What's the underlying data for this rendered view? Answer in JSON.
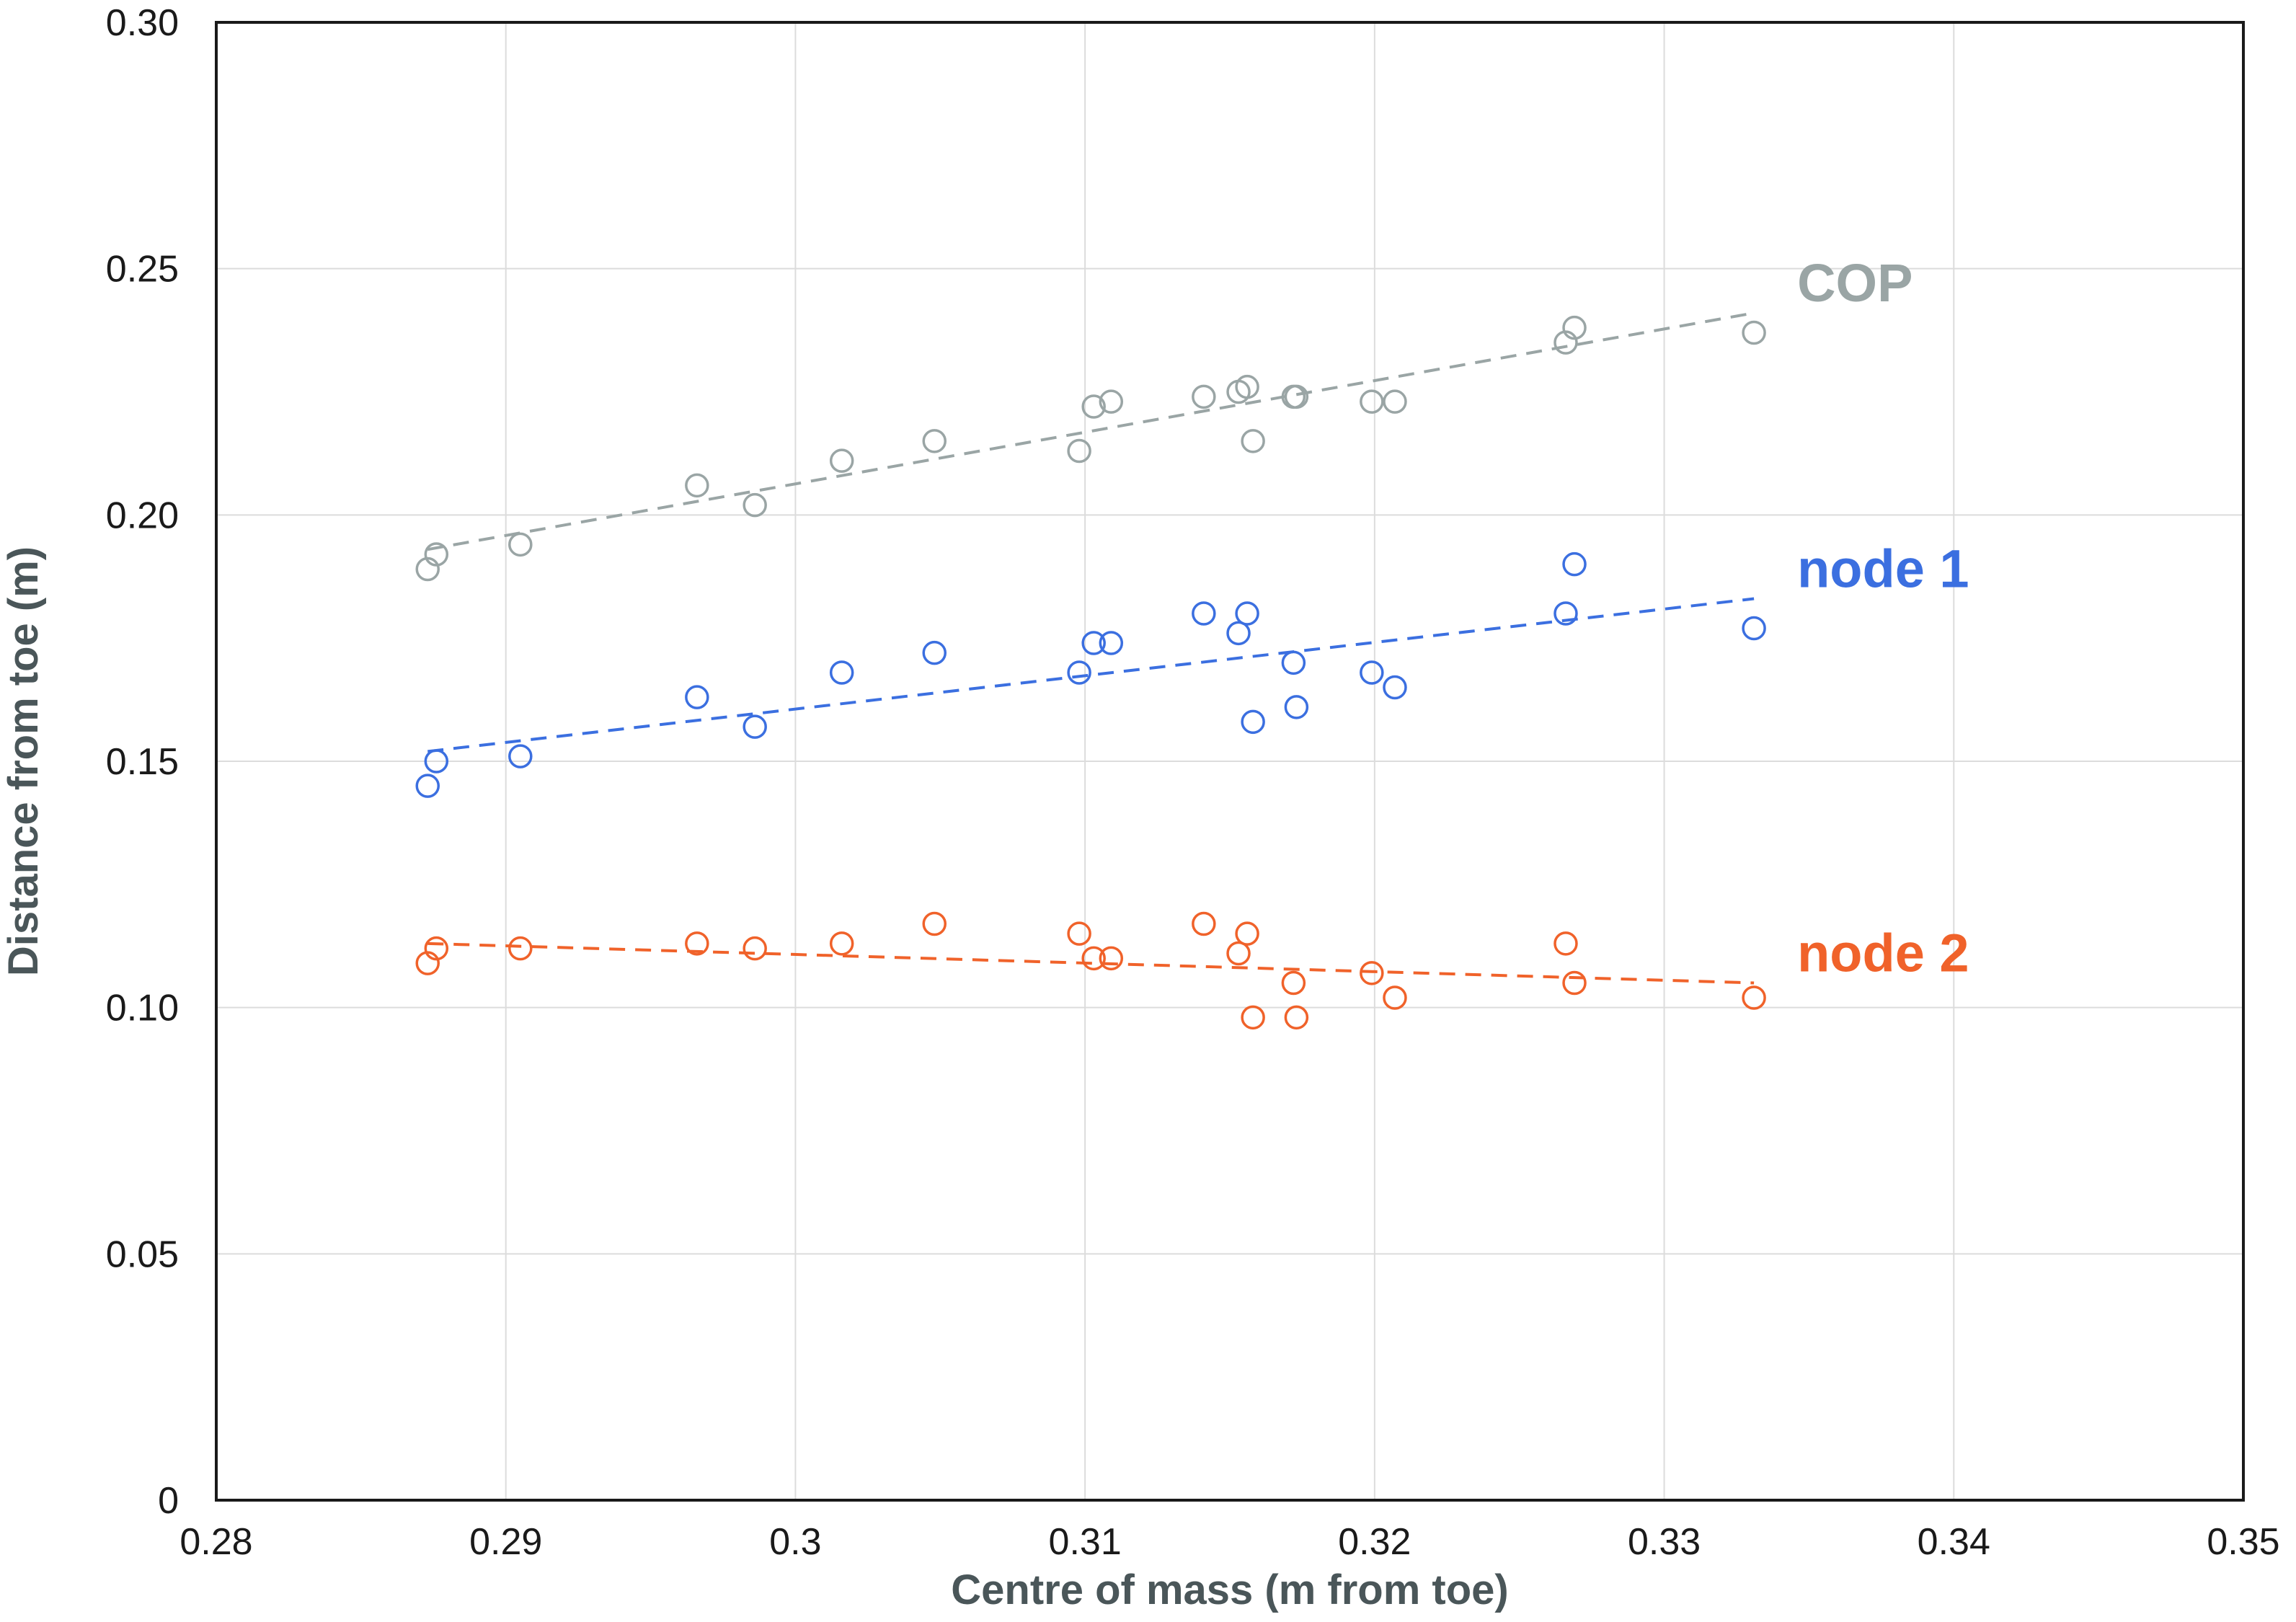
{
  "chart_data": {
    "type": "scatter",
    "title": "",
    "xlabel": "Centre of mass (m from toe)",
    "ylabel": "Distance from toe (m)",
    "xlim": [
      0.28,
      0.35
    ],
    "ylim": [
      0,
      0.3
    ],
    "x_ticks": [
      "0.28",
      "0.29",
      "0.3",
      "0.31",
      "0.32",
      "0.33",
      "0.34",
      "0.35"
    ],
    "y_ticks": [
      "0",
      "0.05",
      "0.10",
      "0.15",
      "0.20",
      "0.25",
      "0.30"
    ],
    "x_tick_values": [
      0.28,
      0.29,
      0.3,
      0.31,
      0.32,
      0.33,
      0.34,
      0.35
    ],
    "y_tick_values": [
      0,
      0.05,
      0.1,
      0.15,
      0.2,
      0.25,
      0.3
    ],
    "grid": true,
    "marker": "open-circle",
    "x": [
      0.2873,
      0.2876,
      0.2905,
      0.2966,
      0.2986,
      0.3016,
      0.3048,
      0.3098,
      0.3103,
      0.3109,
      0.3141,
      0.3153,
      0.3156,
      0.3158,
      0.3172,
      0.3173,
      0.3199,
      0.3207,
      0.3266,
      0.3269,
      0.3331
    ],
    "series": [
      {
        "name": "COP",
        "color": "#9aa5a5",
        "values": [
          0.189,
          0.192,
          0.194,
          0.206,
          0.202,
          0.211,
          0.215,
          0.213,
          0.222,
          0.223,
          0.224,
          0.225,
          0.226,
          0.215,
          0.224,
          0.224,
          0.223,
          0.223,
          0.235,
          0.238,
          0.237
        ],
        "trend": [
          0.193,
          0.241
        ]
      },
      {
        "name": "node 1",
        "color": "#3b6fe0",
        "values": [
          0.145,
          0.15,
          0.151,
          0.163,
          0.157,
          0.168,
          0.172,
          0.168,
          0.174,
          0.174,
          0.18,
          0.176,
          0.18,
          0.158,
          0.17,
          0.161,
          0.168,
          0.165,
          0.18,
          0.19,
          0.177
        ],
        "trend": [
          0.152,
          0.183
        ]
      },
      {
        "name": "node 2",
        "color": "#f0622a",
        "values": [
          0.109,
          0.112,
          0.112,
          0.113,
          0.112,
          0.113,
          0.117,
          0.115,
          0.11,
          0.11,
          0.117,
          0.111,
          0.115,
          0.098,
          0.105,
          0.098,
          0.107,
          0.102,
          0.113,
          0.105,
          0.102
        ],
        "trend": [
          0.113,
          0.105
        ]
      }
    ]
  }
}
